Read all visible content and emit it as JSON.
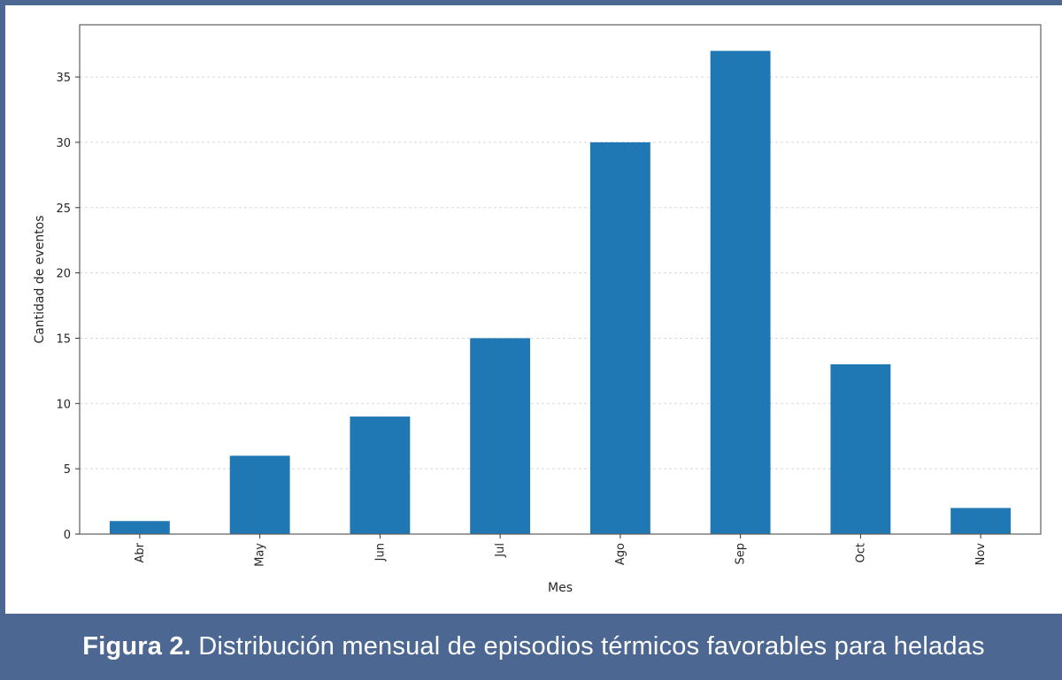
{
  "chart_data": {
    "type": "bar",
    "categories": [
      "Abr",
      "May",
      "Jun",
      "Jul",
      "Ago",
      "Sep",
      "Oct",
      "Nov"
    ],
    "values": [
      1,
      6,
      9,
      15,
      30,
      37,
      13,
      2
    ],
    "xlabel": "Mes",
    "ylabel": "Cantidad de eventos",
    "ylim": [
      0,
      39
    ],
    "yticks": [
      0,
      5,
      10,
      15,
      20,
      25,
      30,
      35
    ],
    "grid": true,
    "bar_color": "#1f77b4",
    "legend": "none"
  },
  "caption": {
    "label": "Figura 2.",
    "text": " Distribución mensual de episodios térmicos favorables para heladas"
  },
  "colors": {
    "frame": "#4c6792",
    "caption_text": "#ffffff"
  }
}
